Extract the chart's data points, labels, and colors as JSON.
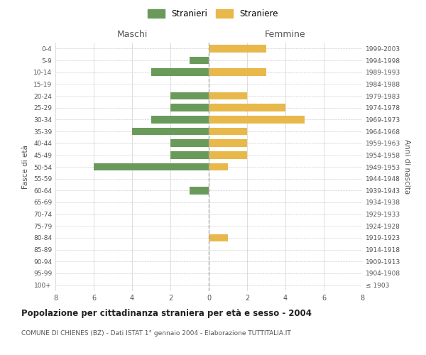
{
  "age_groups": [
    "100+",
    "95-99",
    "90-94",
    "85-89",
    "80-84",
    "75-79",
    "70-74",
    "65-69",
    "60-64",
    "55-59",
    "50-54",
    "45-49",
    "40-44",
    "35-39",
    "30-34",
    "25-29",
    "20-24",
    "15-19",
    "10-14",
    "5-9",
    "0-4"
  ],
  "anni_nascita": [
    "≤ 1903",
    "1904-1908",
    "1909-1913",
    "1914-1918",
    "1919-1923",
    "1924-1928",
    "1929-1933",
    "1934-1938",
    "1939-1943",
    "1944-1948",
    "1949-1953",
    "1954-1958",
    "1959-1963",
    "1964-1968",
    "1969-1973",
    "1974-1978",
    "1979-1983",
    "1984-1988",
    "1989-1993",
    "1994-1998",
    "1999-2003"
  ],
  "maschi": [
    0,
    0,
    0,
    0,
    0,
    0,
    0,
    0,
    1,
    0,
    6,
    2,
    2,
    4,
    3,
    2,
    2,
    0,
    3,
    1,
    0
  ],
  "femmine": [
    0,
    0,
    0,
    0,
    1,
    0,
    0,
    0,
    0,
    0,
    1,
    2,
    2,
    2,
    5,
    4,
    2,
    0,
    3,
    0,
    3
  ],
  "color_maschi": "#6a9a5a",
  "color_femmine": "#e8b84b",
  "title": "Popolazione per cittadinanza straniera per età e sesso - 2004",
  "subtitle": "COMUNE DI CHIENES (BZ) - Dati ISTAT 1° gennaio 2004 - Elaborazione TUTTITALIA.IT",
  "xlabel_left": "Maschi",
  "xlabel_right": "Femmine",
  "ylabel_left": "Fasce di età",
  "ylabel_right": "Anni di nascita",
  "legend_maschi": "Stranieri",
  "legend_femmine": "Straniere",
  "xlim": 8,
  "background_color": "#ffffff",
  "grid_color": "#d0d0d0"
}
